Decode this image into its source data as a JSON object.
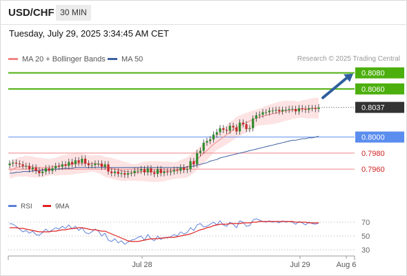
{
  "header": {
    "symbol": "USD/CHF",
    "timeframe": "30 MIN",
    "datetime": "Tuesday, July 29, 2025 3:34:45 AM CET"
  },
  "legend": {
    "ma20": "MA 20 + Bollinger Bands",
    "ma50": "MA 50",
    "credit": "Research © 2025 Trading Central"
  },
  "rsi_legend": {
    "rsi": "RSI",
    "ma": "9MA"
  },
  "colors": {
    "resistance": "#4caf0e",
    "support": "#5b8dee",
    "support_minor": "#f08585",
    "last_price_box": "#333333",
    "arrow": "#2f5f9e",
    "ma20": "#f08585",
    "ma50": "#3b5fa0",
    "band": "#fde0e0",
    "rsi": "#5b7fd6",
    "rsi_ma": "#e02020"
  },
  "chart_data": [
    {
      "type": "candlestick",
      "title": "USD/CHF",
      "price_range": [
        0.793,
        0.809
      ],
      "x_ticks": [
        "Jul 28",
        "Jul 29",
        "Aug 6"
      ],
      "last_price": 0.8037,
      "levels": [
        {
          "label": "0.8080",
          "value": 0.808,
          "kind": "resistance"
        },
        {
          "label": "0.8060",
          "value": 0.806,
          "kind": "resistance"
        },
        {
          "label": "0.8037",
          "value": 0.8037,
          "kind": "last"
        },
        {
          "label": "0.8000",
          "value": 0.8,
          "kind": "support"
        },
        {
          "label": "0.7980",
          "value": 0.798,
          "kind": "support_minor"
        },
        {
          "label": "0.7960",
          "value": 0.796,
          "kind": "support_minor"
        }
      ],
      "closes": [
        0.7967,
        0.7968,
        0.7967,
        0.7966,
        0.7964,
        0.7964,
        0.796,
        0.7962,
        0.7958,
        0.7955,
        0.7957,
        0.7961,
        0.7958,
        0.7961,
        0.7964,
        0.7963,
        0.7966,
        0.7964,
        0.7969,
        0.7966,
        0.7971,
        0.7968,
        0.7973,
        0.7967,
        0.7965,
        0.7965,
        0.7967,
        0.7967,
        0.7963,
        0.7966,
        0.7957,
        0.7955,
        0.7957,
        0.7954,
        0.7955,
        0.7953,
        0.7955,
        0.7955,
        0.7958,
        0.7958,
        0.796,
        0.7956,
        0.7961,
        0.7956,
        0.7954,
        0.796,
        0.7955,
        0.7957,
        0.7956,
        0.7957,
        0.7959,
        0.7958,
        0.7962,
        0.7959,
        0.796,
        0.797,
        0.7966,
        0.798,
        0.7983,
        0.7993,
        0.7995,
        0.7997,
        0.8003,
        0.8006,
        0.8011,
        0.8009,
        0.8008,
        0.8014,
        0.8012,
        0.8007,
        0.8018,
        0.8016,
        0.801,
        0.8011,
        0.8023,
        0.8027,
        0.8028,
        0.8031,
        0.8031,
        0.8033,
        0.8033,
        0.8034,
        0.8032,
        0.8034,
        0.8034,
        0.8035,
        0.8035,
        0.8032,
        0.8036,
        0.8035,
        0.8034,
        0.8036,
        0.8036,
        0.8035,
        0.8037
      ],
      "ma20": [
        0.7958,
        0.796,
        0.7962,
        0.7963,
        0.7963,
        0.7964,
        0.7963,
        0.7963,
        0.7962,
        0.7962,
        0.7962,
        0.7962,
        0.7962,
        0.7963,
        0.7963,
        0.7964,
        0.7965,
        0.7965,
        0.7966,
        0.7966,
        0.7967,
        0.7967,
        0.7967,
        0.7967,
        0.7967,
        0.7967,
        0.7967,
        0.7966,
        0.7965,
        0.7963,
        0.7962,
        0.7961,
        0.796,
        0.7959,
        0.7958,
        0.7957,
        0.7957,
        0.7956,
        0.7956,
        0.7956,
        0.7957,
        0.7957,
        0.7957,
        0.7957,
        0.7957,
        0.7957,
        0.7957,
        0.7957,
        0.7958,
        0.7958,
        0.7958,
        0.7959,
        0.796,
        0.7961,
        0.7962,
        0.7965,
        0.7968,
        0.7972,
        0.7976,
        0.798,
        0.7983,
        0.7987,
        0.7991,
        0.7994,
        0.7997,
        0.8,
        0.8003,
        0.8006,
        0.8009,
        0.8012,
        0.8014,
        0.8016,
        0.8018,
        0.802,
        0.8022,
        0.8024,
        0.8025,
        0.8026,
        0.8027,
        0.8028,
        0.8029,
        0.803,
        0.8031,
        0.8032,
        0.8033,
        0.8033,
        0.8034,
        0.8034,
        0.8034,
        0.8035,
        0.8035,
        0.8035,
        0.8036,
        0.8036,
        0.8036
      ],
      "ma50": [
        0.7955,
        0.7955,
        0.7956,
        0.7956,
        0.7957,
        0.7957,
        0.7957,
        0.7958,
        0.7958,
        0.7958,
        0.7959,
        0.7959,
        0.7959,
        0.796,
        0.796,
        0.796,
        0.7961,
        0.7961,
        0.7961,
        0.7961,
        0.7962,
        0.7962,
        0.7962,
        0.7962,
        0.7962,
        0.7962,
        0.7962,
        0.7962,
        0.7962,
        0.7962,
        0.7962,
        0.7962,
        0.7962,
        0.7962,
        0.7962,
        0.7962,
        0.7962,
        0.7962,
        0.7962,
        0.7962,
        0.7962,
        0.7962,
        0.7962,
        0.7962,
        0.7962,
        0.7962,
        0.7962,
        0.7962,
        0.7962,
        0.7962,
        0.7962,
        0.7962,
        0.7962,
        0.7962,
        0.7963,
        0.7963,
        0.7964,
        0.7965,
        0.7966,
        0.7967,
        0.7968,
        0.797,
        0.7971,
        0.7972,
        0.7974,
        0.7975,
        0.7976,
        0.7977,
        0.7978,
        0.7979,
        0.798,
        0.7981,
        0.7982,
        0.7983,
        0.7984,
        0.7985,
        0.7986,
        0.7987,
        0.7988,
        0.7989,
        0.799,
        0.7991,
        0.7992,
        0.7993,
        0.7994,
        0.7995,
        0.7996,
        0.7996,
        0.7997,
        0.7998,
        0.7998,
        0.7999,
        0.7999,
        0.8,
        0.8001
      ]
    },
    {
      "type": "line",
      "title": "RSI",
      "y_range": [
        20,
        80
      ],
      "y_ticks": [
        70,
        50,
        30
      ],
      "rsi": [
        68,
        67,
        64,
        60,
        56,
        58,
        54,
        57,
        52,
        51,
        55,
        60,
        56,
        59,
        62,
        60,
        64,
        61,
        66,
        60,
        64,
        58,
        62,
        55,
        53,
        56,
        60,
        57,
        50,
        54,
        44,
        42,
        46,
        40,
        43,
        38,
        41,
        44,
        45,
        48,
        50,
        44,
        52,
        46,
        43,
        50,
        45,
        48,
        47,
        49,
        52,
        50,
        56,
        53,
        55,
        62,
        58,
        66,
        68,
        63,
        64,
        67,
        70,
        66,
        72,
        66,
        64,
        70,
        67,
        62,
        72,
        70,
        64,
        65,
        73,
        75,
        73,
        71,
        70,
        72,
        70,
        71,
        69,
        72,
        70,
        71,
        70,
        67,
        71,
        69,
        66,
        70,
        68,
        67,
        69
      ],
      "ma9": [
        62,
        62,
        62,
        61,
        61,
        60,
        59,
        58,
        57,
        56,
        56,
        56,
        56,
        57,
        57,
        58,
        59,
        59,
        60,
        61,
        61,
        62,
        62,
        61,
        60,
        59,
        59,
        58,
        57,
        57,
        55,
        53,
        51,
        49,
        47,
        45,
        43,
        42,
        42,
        42,
        43,
        44,
        45,
        46,
        46,
        46,
        47,
        47,
        48,
        48,
        48,
        49,
        50,
        51,
        52,
        53,
        55,
        57,
        59,
        60,
        62,
        63,
        65,
        66,
        67,
        67,
        67,
        68,
        68,
        68,
        68,
        69,
        69,
        69,
        70,
        70,
        71,
        71,
        71,
        71,
        71,
        71,
        71,
        71,
        71,
        71,
        71,
        70,
        70,
        70,
        70,
        69,
        69,
        69,
        69
      ]
    }
  ]
}
